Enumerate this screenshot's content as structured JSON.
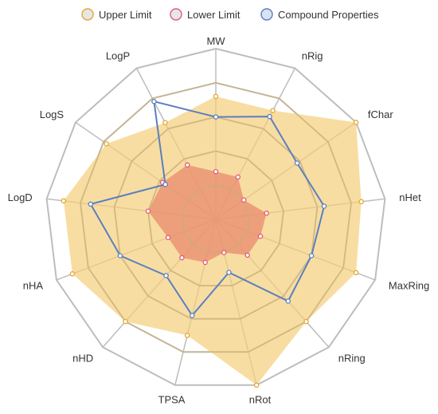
{
  "chart_data": {
    "type": "radar",
    "axes": [
      "MW",
      "nRig",
      "fChar",
      "nHet",
      "MaxRing",
      "nRing",
      "nRot",
      "TPSA",
      "nHD",
      "nHA",
      "LogD",
      "LogS",
      "LogP"
    ],
    "max": 5,
    "rings": 5,
    "series": [
      {
        "name": "Upper Limit",
        "color": "#e3a72f",
        "fill": "#f5cf7a",
        "values": [
          3.6,
          3.6,
          5.0,
          4.3,
          4.4,
          4.0,
          5.0,
          3.5,
          4.0,
          4.5,
          4.5,
          3.9,
          3.2
        ]
      },
      {
        "name": "Lower Limit",
        "color": "#e15a77",
        "fill": "#ea8a6e",
        "values": [
          1.4,
          1.4,
          1.0,
          1.5,
          1.4,
          1.4,
          1.0,
          1.3,
          1.5,
          1.5,
          2.0,
          1.9,
          1.8
        ]
      },
      {
        "name": "Compound Properties",
        "color": "#5a7fc0",
        "fill": "#dbe6f5",
        "values": [
          3.0,
          3.4,
          2.9,
          3.2,
          3.0,
          3.2,
          1.6,
          2.9,
          2.2,
          3.0,
          3.7,
          1.8,
          3.9
        ]
      }
    ]
  }
}
